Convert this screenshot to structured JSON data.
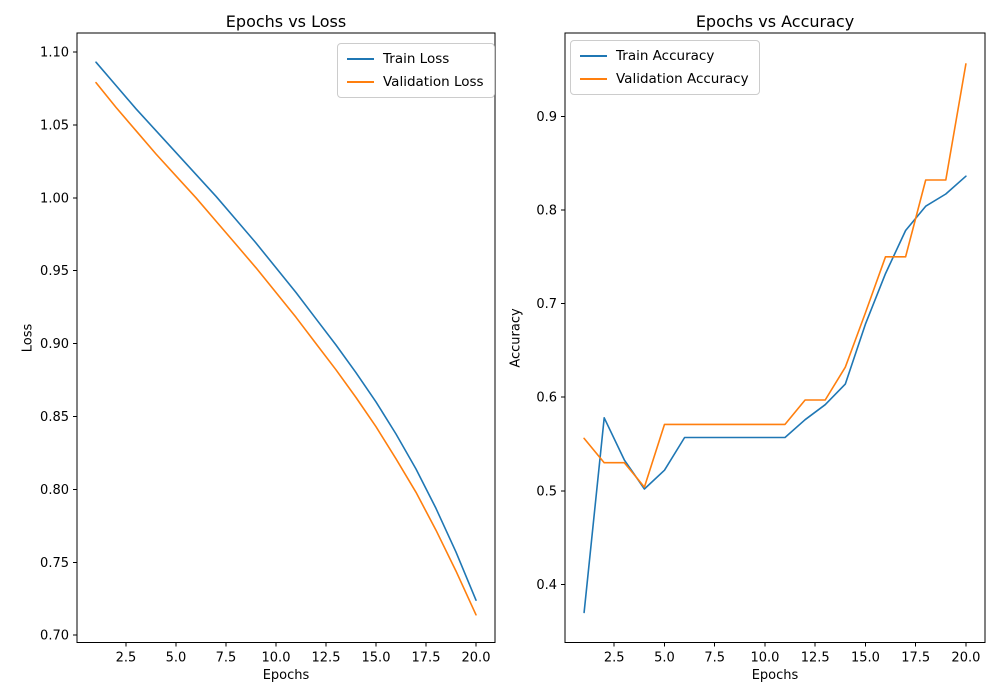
{
  "figure": {
    "background": "#ffffff",
    "axis_color": "#000000",
    "legend_border_color": "#cccccc"
  },
  "chart_data": [
    {
      "type": "line",
      "title": "Epochs vs Loss",
      "xlabel": "Epochs",
      "ylabel": "Loss",
      "xlim": [
        0.05,
        20.95
      ],
      "ylim": [
        0.695,
        1.113
      ],
      "grid": false,
      "legend_position": "upper right",
      "x": [
        1,
        2,
        3,
        4,
        5,
        6,
        7,
        8,
        9,
        10,
        11,
        12,
        13,
        14,
        15,
        16,
        17,
        18,
        19,
        20
      ],
      "xticks": [
        2.5,
        5.0,
        7.5,
        10.0,
        12.5,
        15.0,
        17.5,
        20.0
      ],
      "xtick_labels": [
        "2.5",
        "5.0",
        "7.5",
        "10.0",
        "12.5",
        "15.0",
        "17.5",
        "20.0"
      ],
      "yticks": [
        0.7,
        0.75,
        0.8,
        0.85,
        0.9,
        0.95,
        1.0,
        1.05,
        1.1
      ],
      "ytick_labels": [
        "0.70",
        "0.75",
        "0.80",
        "0.85",
        "0.90",
        "0.95",
        "1.00",
        "1.05",
        "1.10"
      ],
      "series": [
        {
          "name": "Train Loss",
          "color": "#1f77b4",
          "values": [
            1.093,
            1.077,
            1.061,
            1.046,
            1.031,
            1.016,
            1.001,
            0.985,
            0.969,
            0.952,
            0.935,
            0.917,
            0.899,
            0.88,
            0.86,
            0.838,
            0.814,
            0.787,
            0.757,
            0.724
          ]
        },
        {
          "name": "Validation Loss",
          "color": "#ff7f0e",
          "values": [
            1.079,
            1.062,
            1.046,
            1.03,
            1.015,
            1.0,
            0.984,
            0.968,
            0.952,
            0.935,
            0.918,
            0.9,
            0.882,
            0.863,
            0.843,
            0.821,
            0.798,
            0.772,
            0.744,
            0.714
          ]
        }
      ]
    },
    {
      "type": "line",
      "title": "Epochs vs Accuracy",
      "xlabel": "Epochs",
      "ylabel": "Accuracy",
      "xlim": [
        0.05,
        20.95
      ],
      "ylim": [
        0.338,
        0.989
      ],
      "grid": false,
      "legend_position": "upper left",
      "x": [
        1,
        2,
        3,
        4,
        5,
        6,
        7,
        8,
        9,
        10,
        11,
        12,
        13,
        14,
        15,
        16,
        17,
        18,
        19,
        20
      ],
      "xticks": [
        2.5,
        5.0,
        7.5,
        10.0,
        12.5,
        15.0,
        17.5,
        20.0
      ],
      "xtick_labels": [
        "2.5",
        "5.0",
        "7.5",
        "10.0",
        "12.5",
        "15.0",
        "17.5",
        "20.0"
      ],
      "yticks": [
        0.4,
        0.5,
        0.6,
        0.7,
        0.8,
        0.9
      ],
      "ytick_labels": [
        "0.4",
        "0.5",
        "0.6",
        "0.7",
        "0.8",
        "0.9"
      ],
      "series": [
        {
          "name": "Train Accuracy",
          "color": "#1f77b4",
          "values": [
            0.37,
            0.578,
            0.533,
            0.502,
            0.522,
            0.557,
            0.557,
            0.557,
            0.557,
            0.557,
            0.557,
            0.576,
            0.592,
            0.614,
            0.678,
            0.732,
            0.778,
            0.804,
            0.817,
            0.836
          ]
        },
        {
          "name": "Validation Accuracy",
          "color": "#ff7f0e",
          "values": [
            0.556,
            0.53,
            0.53,
            0.504,
            0.571,
            0.571,
            0.571,
            0.571,
            0.571,
            0.571,
            0.571,
            0.597,
            0.597,
            0.632,
            0.69,
            0.75,
            0.75,
            0.832,
            0.832,
            0.956
          ]
        }
      ]
    }
  ]
}
